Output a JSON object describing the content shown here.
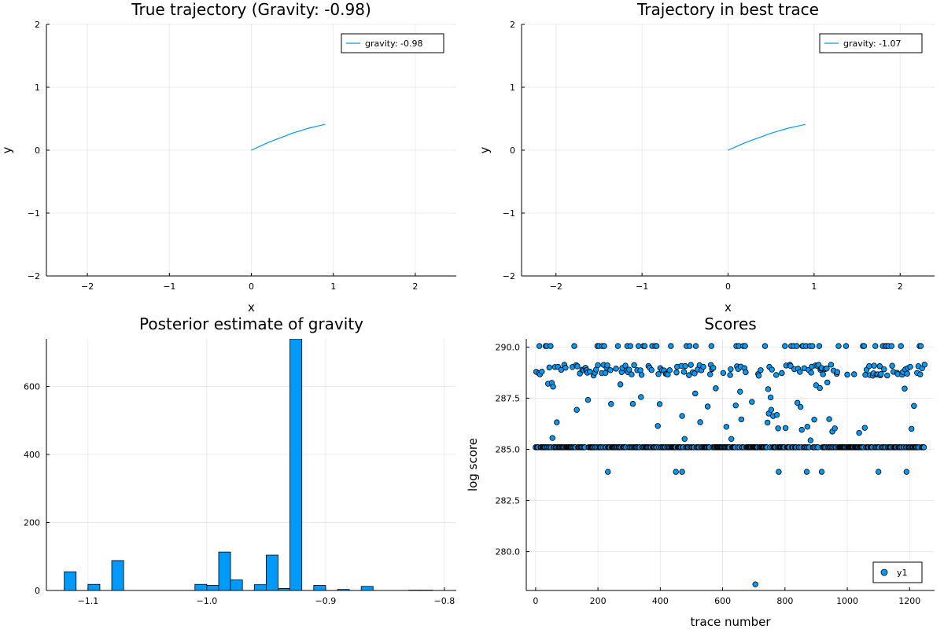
{
  "chart_data": [
    {
      "type": "line",
      "title": "True trajectory (Gravity: -0.98)",
      "xlabel": "x",
      "ylabel": "y",
      "xlim": [
        -2.5,
        2.5
      ],
      "ylim": [
        -2,
        2
      ],
      "xticks": [
        -2,
        -1,
        0,
        1,
        2
      ],
      "yticks": [
        -2,
        -1,
        0,
        1,
        2
      ],
      "grid": true,
      "legend_position": "top-right",
      "color": "#009AFA",
      "series": [
        {
          "name": "gravity: -0.98",
          "x": [
            0.0,
            0.1,
            0.2,
            0.3,
            0.4,
            0.5,
            0.6,
            0.7,
            0.8,
            0.9
          ],
          "y": [
            0.0,
            0.06,
            0.12,
            0.17,
            0.22,
            0.27,
            0.31,
            0.35,
            0.38,
            0.41
          ]
        }
      ]
    },
    {
      "type": "line",
      "title": "Trajectory in best trace",
      "xlabel": "x",
      "ylabel": "y",
      "xlim": [
        -2.4,
        2.4
      ],
      "ylim": [
        -2,
        2
      ],
      "xticks": [
        -2,
        -1,
        0,
        1,
        2
      ],
      "yticks": [
        -2,
        -1,
        0,
        1,
        2
      ],
      "grid": true,
      "legend_position": "top-right",
      "color": "#009AFA",
      "series": [
        {
          "name": "gravity: -1.07",
          "x": [
            0.0,
            0.1,
            0.2,
            0.3,
            0.4,
            0.5,
            0.6,
            0.7,
            0.8,
            0.9
          ],
          "y": [
            0.0,
            0.06,
            0.12,
            0.17,
            0.22,
            0.27,
            0.31,
            0.35,
            0.38,
            0.41
          ]
        }
      ]
    },
    {
      "type": "bar",
      "title": "Posterior estimate of gravity",
      "xlabel": "",
      "ylabel": "",
      "xlim": [
        -1.135,
        -0.79
      ],
      "ylim": [
        0,
        740
      ],
      "xticks": [
        -1.1,
        -1.0,
        -0.9,
        -0.8
      ],
      "xtick_labels": [
        "−1.1",
        "−1.0",
        "−0.9",
        "−0.8"
      ],
      "yticks": [
        0,
        200,
        400,
        600
      ],
      "grid": true,
      "color": "#009AFA",
      "bin_width": 0.01,
      "bins": [
        {
          "start": -1.12,
          "count": 55
        },
        {
          "start": -1.1,
          "count": 18
        },
        {
          "start": -1.08,
          "count": 88
        },
        {
          "start": -1.01,
          "count": 18
        },
        {
          "start": -1.0,
          "count": 15
        },
        {
          "start": -0.99,
          "count": 113
        },
        {
          "start": -0.98,
          "count": 31
        },
        {
          "start": -0.96,
          "count": 17
        },
        {
          "start": -0.95,
          "count": 104
        },
        {
          "start": -0.94,
          "count": 6
        },
        {
          "start": -0.93,
          "count": 740
        },
        {
          "start": -0.91,
          "count": 15
        },
        {
          "start": -0.89,
          "count": 3
        },
        {
          "start": -0.87,
          "count": 12
        },
        {
          "start": -0.83,
          "count": 1
        },
        {
          "start": -0.82,
          "count": 1
        }
      ]
    },
    {
      "type": "scatter",
      "title": "Scores",
      "xlabel": "trace number",
      "ylabel": "log score",
      "xlim": [
        -30,
        1280
      ],
      "ylim": [
        278.1,
        290.4
      ],
      "xticks": [
        0,
        200,
        400,
        600,
        800,
        1000,
        1200
      ],
      "yticks": [
        280.0,
        282.5,
        285.0,
        287.5,
        290.0
      ],
      "ytick_labels": [
        "280.0",
        "282.5",
        "285.0",
        "287.5",
        "290.0"
      ],
      "grid": true,
      "legend_position": "bottom-right",
      "color": "#009AFA",
      "n_points": 1250,
      "series": [
        {
          "name": "y1",
          "score_levels": [
            290.05,
            289.0,
            288.7,
            285.1
          ],
          "band_range": [
            285.4,
            288.4
          ],
          "outliers": [
            {
              "x": 232,
              "y": 283.9
            },
            {
              "x": 450,
              "y": 283.9
            },
            {
              "x": 470,
              "y": 283.9
            },
            {
              "x": 705,
              "y": 278.4
            },
            {
              "x": 780,
              "y": 283.9
            },
            {
              "x": 870,
              "y": 283.9
            },
            {
              "x": 918,
              "y": 283.9
            },
            {
              "x": 1100,
              "y": 283.9
            },
            {
              "x": 1190,
              "y": 283.9
            }
          ]
        }
      ]
    }
  ]
}
